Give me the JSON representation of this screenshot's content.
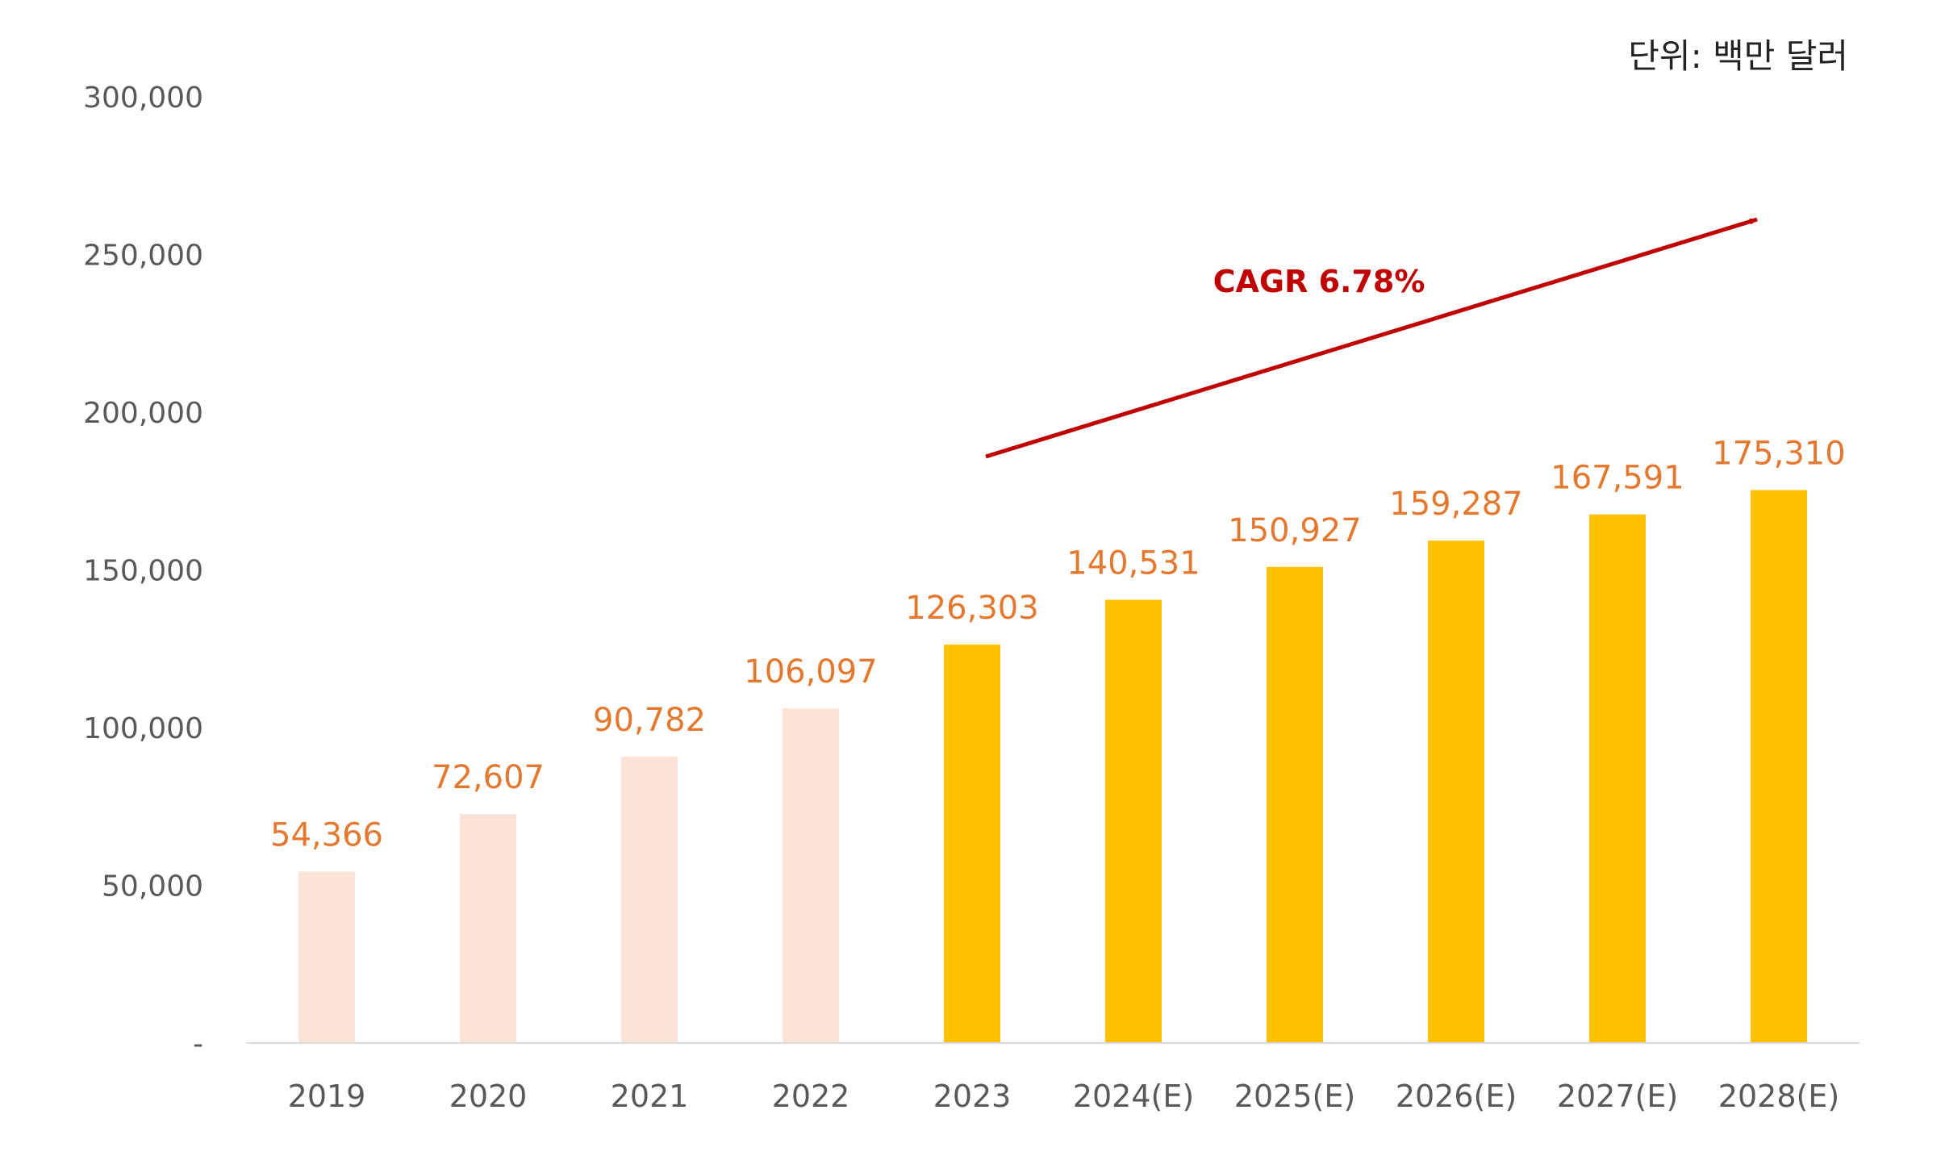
{
  "unit_label": "단위: 백만 달러",
  "annotation": {
    "text": "CAGR 6.78%"
  },
  "colors": {
    "actual": "#FBE3D8",
    "estimate": "#FFC000",
    "label": "#E5782F",
    "arrow": "#C00000",
    "axis_text": "#595959",
    "axis_line": "#D9D9D9"
  },
  "chart_data": {
    "type": "bar",
    "title": "",
    "xlabel": "",
    "ylabel": "",
    "ylim": [
      0,
      300000
    ],
    "yticks": [
      0,
      50000,
      100000,
      150000,
      200000,
      250000,
      300000
    ],
    "ytick_labels": [
      "-",
      "50,000",
      "100,000",
      "150,000",
      "200,000",
      "250,000",
      "300,000"
    ],
    "categories": [
      "2019",
      "2020",
      "2021",
      "2022",
      "2023",
      "2024(E)",
      "2025(E)",
      "2026(E)",
      "2027(E)",
      "2028(E)"
    ],
    "values": [
      54366,
      72607,
      90782,
      106097,
      126303,
      140531,
      150927,
      159287,
      167591,
      175310
    ],
    "value_labels": [
      "54,366",
      "72,607",
      "90,782",
      "106,097",
      "126,303",
      "140,531",
      "150,927",
      "159,287",
      "167,591",
      "175,310"
    ],
    "series_type": [
      "actual",
      "actual",
      "actual",
      "actual",
      "estimate",
      "estimate",
      "estimate",
      "estimate",
      "estimate",
      "estimate"
    ]
  }
}
